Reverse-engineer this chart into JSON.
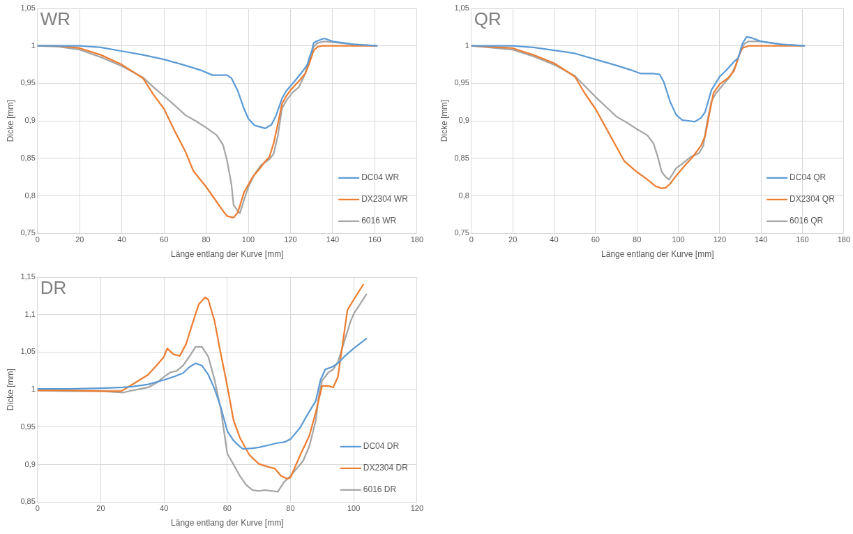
{
  "chart_data": [
    {
      "type": "line",
      "title": "WR",
      "xlabel": "Länge entlang der Kurve [mm]",
      "ylabel": "Dicke [mm]",
      "xlim": [
        0,
        180
      ],
      "xticks": [
        0,
        20,
        40,
        60,
        80,
        100,
        120,
        140,
        160,
        180
      ],
      "ylim": [
        0.75,
        1.05
      ],
      "yticks": [
        {
          "value": 0.75,
          "label": "0,75"
        },
        {
          "value": 0.8,
          "label": "0,8"
        },
        {
          "value": 0.85,
          "label": "0,85"
        },
        {
          "value": 0.9,
          "label": "0,9"
        },
        {
          "value": 0.95,
          "label": "0,95"
        },
        {
          "value": 1,
          "label": "1"
        },
        {
          "value": 1.05,
          "label": "1,05"
        }
      ],
      "grid": true,
      "legend": "bottom right",
      "marker": "none",
      "line_style": "solid",
      "series": [
        {
          "name": "DC04 WR",
          "color": "#5b9bd5",
          "x": [
            0,
            20,
            30,
            40,
            50,
            60,
            70,
            78,
            83,
            90,
            92,
            95,
            98,
            100,
            103,
            108,
            111,
            113,
            116,
            118,
            122,
            126,
            128,
            130,
            131,
            133,
            136,
            140,
            145,
            150,
            161
          ],
          "values": [
            1.0,
            1.0,
            0.998,
            0.993,
            0.988,
            0.982,
            0.974,
            0.967,
            0.961,
            0.961,
            0.957,
            0.94,
            0.916,
            0.903,
            0.894,
            0.89,
            0.895,
            0.906,
            0.93,
            0.94,
            0.953,
            0.967,
            0.975,
            0.992,
            1.004,
            1.007,
            1.01,
            1.006,
            1.004,
            1.002,
            1.0
          ]
        },
        {
          "name": "DX2304 WR",
          "color": "#ed7d31",
          "x": [
            0,
            10,
            20,
            30,
            40,
            50,
            55,
            60,
            65,
            70,
            74,
            80,
            85,
            88,
            90,
            93,
            95,
            98,
            100,
            102,
            105,
            108,
            110,
            112,
            114,
            116,
            118,
            120,
            124,
            127,
            129,
            131,
            133,
            135,
            160
          ],
          "values": [
            1.0,
            1.0,
            0.997,
            0.988,
            0.975,
            0.957,
            0.935,
            0.916,
            0.887,
            0.86,
            0.833,
            0.812,
            0.792,
            0.78,
            0.773,
            0.771,
            0.778,
            0.805,
            0.815,
            0.825,
            0.835,
            0.846,
            0.852,
            0.87,
            0.896,
            0.923,
            0.933,
            0.941,
            0.953,
            0.963,
            0.977,
            0.994,
            0.999,
            1.0,
            1.0
          ]
        },
        {
          "name": "6016 WR",
          "color": "#a5a5a5",
          "x": [
            0,
            10,
            20,
            30,
            40,
            50,
            55,
            60,
            65,
            70,
            75,
            80,
            85,
            88,
            90,
            92,
            93,
            95,
            96,
            98,
            100,
            103,
            106,
            110,
            112,
            114,
            116,
            118,
            121,
            124,
            127,
            129,
            131,
            133,
            136,
            140,
            150,
            161
          ],
          "values": [
            1.0,
            0.999,
            0.995,
            0.985,
            0.973,
            0.958,
            0.945,
            0.933,
            0.921,
            0.908,
            0.9,
            0.891,
            0.881,
            0.868,
            0.846,
            0.815,
            0.788,
            0.78,
            0.777,
            0.795,
            0.812,
            0.829,
            0.841,
            0.849,
            0.856,
            0.88,
            0.917,
            0.927,
            0.938,
            0.945,
            0.963,
            0.985,
            0.999,
            1.004,
            1.006,
            1.005,
            1.002,
            1.0
          ]
        }
      ]
    },
    {
      "type": "line",
      "title": "QR",
      "xlabel": "Länge entlang der Kurve [mm]",
      "ylabel": "Dicke [mm]",
      "xlim": [
        0,
        180
      ],
      "xticks": [
        0,
        20,
        40,
        60,
        80,
        100,
        120,
        140,
        160,
        180
      ],
      "ylim": [
        0.75,
        1.05
      ],
      "yticks": [
        {
          "value": 0.75,
          "label": "0,75"
        },
        {
          "value": 0.8,
          "label": "0,8"
        },
        {
          "value": 0.85,
          "label": "0,85"
        },
        {
          "value": 0.9,
          "label": "0,9"
        },
        {
          "value": 0.95,
          "label": "0,95"
        },
        {
          "value": 1,
          "label": "1"
        },
        {
          "value": 1.05,
          "label": "1,05"
        }
      ],
      "grid": true,
      "legend": "bottom right",
      "marker": "none",
      "line_style": "solid",
      "series": [
        {
          "name": "DC04 QR",
          "color": "#5b9bd5",
          "x": [
            0,
            20,
            30,
            40,
            50,
            60,
            70,
            78,
            82,
            88,
            91,
            93,
            96,
            99,
            102,
            105,
            108,
            111,
            113,
            116,
            120,
            123,
            127,
            129,
            131,
            133,
            135,
            140,
            150,
            161
          ],
          "values": [
            1.0,
            1.0,
            0.998,
            0.994,
            0.99,
            0.982,
            0.974,
            0.967,
            0.963,
            0.963,
            0.962,
            0.952,
            0.926,
            0.908,
            0.901,
            0.9,
            0.899,
            0.904,
            0.912,
            0.941,
            0.959,
            0.967,
            0.979,
            0.984,
            1.003,
            1.012,
            1.011,
            1.006,
            1.002,
            1.0
          ]
        },
        {
          "name": "DX2304 QR",
          "color": "#ed7d31",
          "x": [
            0,
            20,
            30,
            40,
            50,
            55,
            60,
            65,
            70,
            74,
            80,
            85,
            89,
            92,
            94,
            96,
            99,
            103,
            107,
            111,
            113,
            115,
            117,
            120,
            124,
            127,
            129,
            131,
            134,
            140,
            160
          ],
          "values": [
            1.0,
            0.997,
            0.988,
            0.977,
            0.959,
            0.936,
            0.916,
            0.891,
            0.866,
            0.846,
            0.832,
            0.822,
            0.813,
            0.81,
            0.811,
            0.816,
            0.827,
            0.84,
            0.852,
            0.867,
            0.88,
            0.909,
            0.937,
            0.949,
            0.957,
            0.967,
            0.985,
            0.997,
            1.0,
            1.0,
            1.0
          ]
        },
        {
          "name": "6016 QR",
          "color": "#a5a5a5",
          "x": [
            0,
            20,
            30,
            40,
            50,
            55,
            60,
            65,
            70,
            75,
            80,
            85,
            88,
            90,
            92,
            94,
            95.5,
            97,
            99,
            102,
            106,
            110,
            112,
            114,
            116,
            118,
            121,
            125,
            128,
            130,
            132,
            134,
            140,
            150,
            161
          ],
          "values": [
            1.0,
            0.995,
            0.986,
            0.975,
            0.96,
            0.946,
            0.932,
            0.919,
            0.906,
            0.898,
            0.889,
            0.881,
            0.87,
            0.853,
            0.832,
            0.825,
            0.822,
            0.828,
            0.837,
            0.843,
            0.852,
            0.857,
            0.866,
            0.899,
            0.926,
            0.936,
            0.946,
            0.959,
            0.975,
            0.992,
            1.003,
            1.006,
            1.006,
            1.002,
            1.0
          ]
        }
      ]
    },
    {
      "type": "line",
      "title": "DR",
      "xlabel": "Länge entlang der Kurve [mm]",
      "ylabel": "Dicke [mm]",
      "xlim": [
        0,
        120
      ],
      "xticks": [
        0,
        20,
        40,
        60,
        80,
        100,
        120
      ],
      "ylim": [
        0.85,
        1.15
      ],
      "yticks": [
        {
          "value": 0.85,
          "label": "0,85"
        },
        {
          "value": 0.9,
          "label": "0,9"
        },
        {
          "value": 0.95,
          "label": "0,95"
        },
        {
          "value": 1,
          "label": "1"
        },
        {
          "value": 1.05,
          "label": "1,05"
        },
        {
          "value": 1.1,
          "label": "1,1"
        },
        {
          "value": 1.15,
          "label": "1,15"
        }
      ],
      "grid": true,
      "legend": "bottom right",
      "marker": "none",
      "line_style": "solid",
      "series": [
        {
          "name": "DC04 DR",
          "color": "#5b9bd5",
          "x": [
            0,
            10,
            20,
            27,
            30,
            35,
            40,
            43,
            46,
            48,
            50,
            52,
            54,
            56,
            58,
            60,
            62,
            64,
            65,
            68,
            70,
            73,
            76,
            78,
            80,
            83,
            85,
            88,
            89.5,
            91,
            93,
            95,
            97,
            100,
            104
          ],
          "values": [
            1.001,
            1.001,
            1.002,
            1.003,
            1.004,
            1.007,
            1.013,
            1.017,
            1.022,
            1.03,
            1.035,
            1.032,
            1.02,
            1.001,
            0.976,
            0.945,
            0.932,
            0.924,
            0.921,
            0.922,
            0.923,
            0.926,
            0.929,
            0.93,
            0.934,
            0.949,
            0.964,
            0.985,
            1.013,
            1.027,
            1.03,
            1.035,
            1.044,
            1.055,
            1.068
          ]
        },
        {
          "name": "DX2304 DR",
          "color": "#ed7d31",
          "x": [
            0,
            10,
            20,
            26.5,
            30,
            35,
            38,
            40,
            41,
            43,
            45,
            47,
            49,
            51,
            53,
            54,
            56,
            58,
            60,
            62,
            64,
            67,
            70,
            73,
            75,
            77,
            79,
            80,
            83,
            86,
            88,
            90,
            92,
            93.5,
            95,
            96.5,
            98,
            100,
            103
          ],
          "values": [
            0.999,
            0.999,
            0.998,
            0.998,
            1.007,
            1.02,
            1.034,
            1.044,
            1.055,
            1.047,
            1.045,
            1.061,
            1.088,
            1.114,
            1.123,
            1.12,
            1.091,
            1.047,
            1.005,
            0.959,
            0.936,
            0.913,
            0.901,
            0.897,
            0.895,
            0.885,
            0.881,
            0.883,
            0.912,
            0.939,
            0.97,
            1.005,
            1.005,
            1.003,
            1.017,
            1.061,
            1.106,
            1.12,
            1.14
          ]
        },
        {
          "name": "6016 DR",
          "color": "#a5a5a5",
          "x": [
            0,
            10,
            20,
            27,
            30,
            35,
            38,
            40,
            42,
            44,
            46,
            48,
            50,
            52,
            54,
            56,
            58,
            60,
            62,
            64,
            66,
            68,
            70,
            72,
            74,
            76,
            78,
            80,
            82,
            84,
            86,
            88,
            89,
            90,
            92,
            93.5,
            95,
            97,
            99,
            100,
            104
          ],
          "values": [
            0.999,
            0.998,
            0.998,
            0.996,
            0.999,
            1.003,
            1.01,
            1.017,
            1.023,
            1.025,
            1.032,
            1.044,
            1.057,
            1.057,
            1.044,
            1.013,
            0.973,
            0.915,
            0.9,
            0.885,
            0.873,
            0.866,
            0.865,
            0.866,
            0.865,
            0.864,
            0.877,
            0.885,
            0.895,
            0.905,
            0.925,
            0.959,
            0.993,
            1.012,
            1.023,
            1.027,
            1.037,
            1.064,
            1.091,
            1.101,
            1.127
          ]
        }
      ]
    }
  ]
}
